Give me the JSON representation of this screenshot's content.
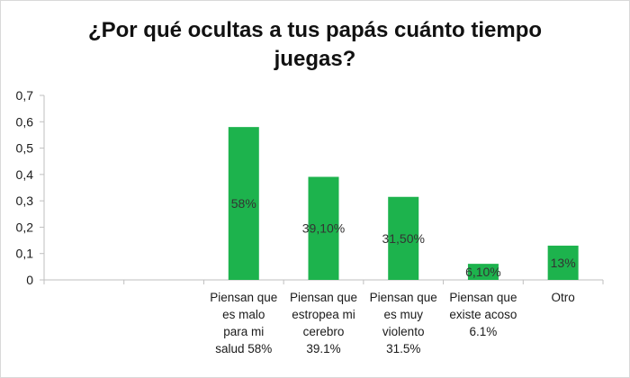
{
  "title_lines": [
    "¿Por qué ocultas a tus papás cuánto tiempo",
    "juegas?"
  ],
  "colors": {
    "bar": "#1db34d",
    "axis": "#bfbfbf",
    "text": "#1a1a1a"
  },
  "chart_data": {
    "type": "bar",
    "title": "¿Por qué ocultas a tus papás cuánto tiempo juegas?",
    "categories": [
      "",
      "",
      "Piensan que es malo para mi salud 58%",
      "Piensan que estropea mi cerebro 39.1%",
      "Piensan que es muy violento 31.5%",
      "Piensan que existe acoso 6.1%",
      "Otro"
    ],
    "category_lines": [
      [],
      [],
      [
        "Piensan que",
        "es malo",
        "para mi",
        "salud 58%"
      ],
      [
        "Piensan que",
        "estropea mi",
        "cerebro",
        "39.1%"
      ],
      [
        "Piensan que",
        "es muy",
        "violento",
        "31.5%"
      ],
      [
        "Piensan que",
        "existe acoso",
        "6.1%"
      ],
      [
        "Otro"
      ]
    ],
    "values": [
      null,
      null,
      0.58,
      0.391,
      0.315,
      0.061,
      0.13
    ],
    "data_labels": [
      "",
      "",
      "58%",
      "39,10%",
      "31,50%",
      "6,10%",
      "13%"
    ],
    "ylim": [
      0,
      0.7
    ],
    "yticks": [
      "0",
      "0,1",
      "0,2",
      "0,3",
      "0,4",
      "0,5",
      "0,6",
      "0,7"
    ],
    "grid": false,
    "legend": "none"
  }
}
